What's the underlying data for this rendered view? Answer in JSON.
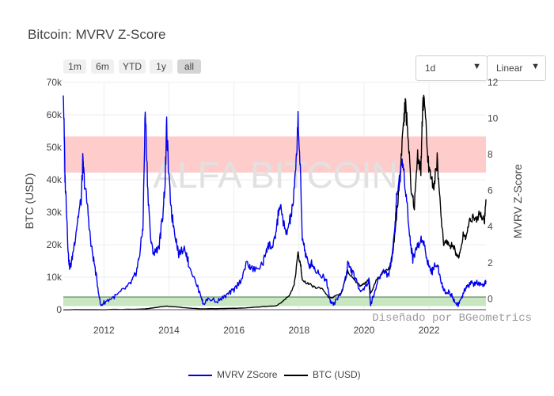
{
  "title": "Bitcoin: MVRV Z-Score",
  "controls": {
    "range_buttons": [
      "1m",
      "6m",
      "YTD",
      "1y",
      "all"
    ],
    "active_range": "all",
    "interval_select": "1d",
    "scale_select": "Linear"
  },
  "watermark": "ALFA BITCOIN",
  "credit": "Diseñado por BGeometrics",
  "colors": {
    "zscore": "#0000ee",
    "btc": "#000000",
    "red_band": "#ffcccc",
    "green_band": "#c8e6c0"
  },
  "chart_data": {
    "type": "line",
    "title": "Bitcoin: MVRV Z-Score",
    "xlabel": "",
    "x_ticks": [
      "2012",
      "2014",
      "2016",
      "2018",
      "2020",
      "2022"
    ],
    "x_range": [
      2010.75,
      2023.75
    ],
    "left_axis": {
      "label": "BTC (USD)",
      "range": [
        0,
        70000
      ],
      "ticks": [
        "0",
        "10k",
        "20k",
        "30k",
        "40k",
        "50k",
        "60k",
        "70k"
      ]
    },
    "right_axis": {
      "label": "MVRV Z-Score",
      "range": [
        -0.6,
        12
      ],
      "ticks": [
        "0",
        "2",
        "4",
        "6",
        "8",
        "10",
        "12"
      ]
    },
    "bands": [
      {
        "axis": "right",
        "from": 7.0,
        "to": 9.0,
        "color": "red"
      },
      {
        "axis": "right",
        "from": -0.4,
        "to": 0.1,
        "color": "green"
      }
    ],
    "series": [
      {
        "name": "MVRV ZScore",
        "axis": "right",
        "points": [
          [
            2010.75,
            11.6
          ],
          [
            2010.8,
            6.8
          ],
          [
            2010.85,
            5.0
          ],
          [
            2010.9,
            2.5
          ],
          [
            2010.95,
            1.7
          ],
          [
            2011.0,
            2.0
          ],
          [
            2011.1,
            3.2
          ],
          [
            2011.2,
            4.5
          ],
          [
            2011.3,
            5.5
          ],
          [
            2011.35,
            7.6
          ],
          [
            2011.4,
            6.5
          ],
          [
            2011.5,
            5.0
          ],
          [
            2011.6,
            3.0
          ],
          [
            2011.7,
            2.0
          ],
          [
            2011.8,
            0.8
          ],
          [
            2011.9,
            -0.4
          ],
          [
            2012.0,
            -0.2
          ],
          [
            2012.2,
            0.0
          ],
          [
            2012.4,
            0.2
          ],
          [
            2012.6,
            0.5
          ],
          [
            2012.8,
            0.8
          ],
          [
            2012.9,
            1.1
          ],
          [
            2013.0,
            1.5
          ],
          [
            2013.1,
            2.5
          ],
          [
            2013.2,
            4.0
          ],
          [
            2013.27,
            10.5
          ],
          [
            2013.35,
            6.0
          ],
          [
            2013.45,
            3.0
          ],
          [
            2013.55,
            2.5
          ],
          [
            2013.7,
            3.0
          ],
          [
            2013.8,
            4.5
          ],
          [
            2013.88,
            6.5
          ],
          [
            2013.93,
            9.6
          ],
          [
            2014.0,
            6.5
          ],
          [
            2014.1,
            4.5
          ],
          [
            2014.2,
            3.5
          ],
          [
            2014.3,
            2.5
          ],
          [
            2014.5,
            2.8
          ],
          [
            2014.6,
            2.0
          ],
          [
            2014.8,
            1.0
          ],
          [
            2015.0,
            0.1
          ],
          [
            2015.05,
            -0.3
          ],
          [
            2015.2,
            0.0
          ],
          [
            2015.5,
            -0.1
          ],
          [
            2015.7,
            0.1
          ],
          [
            2015.85,
            0.3
          ],
          [
            2016.0,
            0.5
          ],
          [
            2016.2,
            1.0
          ],
          [
            2016.4,
            2.0
          ],
          [
            2016.5,
            1.7
          ],
          [
            2016.7,
            1.6
          ],
          [
            2016.9,
            2.0
          ],
          [
            2017.0,
            2.8
          ],
          [
            2017.1,
            3.0
          ],
          [
            2017.2,
            2.8
          ],
          [
            2017.3,
            3.8
          ],
          [
            2017.4,
            5.2
          ],
          [
            2017.5,
            4.5
          ],
          [
            2017.6,
            3.5
          ],
          [
            2017.7,
            4.2
          ],
          [
            2017.8,
            5.0
          ],
          [
            2017.9,
            7.0
          ],
          [
            2017.97,
            10.1
          ],
          [
            2018.05,
            6.5
          ],
          [
            2018.1,
            3.5
          ],
          [
            2018.2,
            2.5
          ],
          [
            2018.3,
            1.8
          ],
          [
            2018.4,
            2.0
          ],
          [
            2018.5,
            1.6
          ],
          [
            2018.7,
            1.3
          ],
          [
            2018.85,
            1.0
          ],
          [
            2018.95,
            0.0
          ],
          [
            2019.0,
            -0.3
          ],
          [
            2019.1,
            -0.2
          ],
          [
            2019.3,
            0.3
          ],
          [
            2019.45,
            1.3
          ],
          [
            2019.5,
            2.0
          ],
          [
            2019.6,
            1.6
          ],
          [
            2019.7,
            1.3
          ],
          [
            2019.85,
            0.5
          ],
          [
            2020.0,
            0.6
          ],
          [
            2020.15,
            1.0
          ],
          [
            2020.2,
            -0.3
          ],
          [
            2020.3,
            0.2
          ],
          [
            2020.45,
            1.1
          ],
          [
            2020.6,
            1.6
          ],
          [
            2020.75,
            1.3
          ],
          [
            2020.85,
            2.2
          ],
          [
            2020.95,
            4.0
          ],
          [
            2021.0,
            5.6
          ],
          [
            2021.1,
            6.8
          ],
          [
            2021.2,
            7.5
          ],
          [
            2021.3,
            5.8
          ],
          [
            2021.4,
            3.5
          ],
          [
            2021.5,
            2.2
          ],
          [
            2021.6,
            2.8
          ],
          [
            2021.7,
            3.0
          ],
          [
            2021.8,
            3.5
          ],
          [
            2021.9,
            2.5
          ],
          [
            2022.0,
            1.8
          ],
          [
            2022.1,
            1.5
          ],
          [
            2022.2,
            2.0
          ],
          [
            2022.3,
            1.6
          ],
          [
            2022.4,
            0.8
          ],
          [
            2022.5,
            0.3
          ],
          [
            2022.6,
            0.4
          ],
          [
            2022.7,
            0.2
          ],
          [
            2022.8,
            -0.2
          ],
          [
            2022.9,
            -0.3
          ],
          [
            2023.0,
            0.0
          ],
          [
            2023.1,
            0.5
          ],
          [
            2023.2,
            0.7
          ],
          [
            2023.3,
            0.9
          ],
          [
            2023.4,
            0.8
          ],
          [
            2023.5,
            0.9
          ],
          [
            2023.6,
            0.7
          ],
          [
            2023.7,
            0.7
          ],
          [
            2023.75,
            1.0
          ]
        ]
      },
      {
        "name": "BTC (USD)",
        "axis": "left",
        "points": [
          [
            2010.75,
            0
          ],
          [
            2012.0,
            5
          ],
          [
            2013.27,
            200
          ],
          [
            2013.93,
            1100
          ],
          [
            2014.5,
            600
          ],
          [
            2015.0,
            250
          ],
          [
            2016.0,
            430
          ],
          [
            2016.5,
            650
          ],
          [
            2017.0,
            1000
          ],
          [
            2017.3,
            1200
          ],
          [
            2017.5,
            2500
          ],
          [
            2017.7,
            4500
          ],
          [
            2017.85,
            7500
          ],
          [
            2017.97,
            17000
          ],
          [
            2018.05,
            14000
          ],
          [
            2018.1,
            9000
          ],
          [
            2018.3,
            8000
          ],
          [
            2018.45,
            7000
          ],
          [
            2018.7,
            6500
          ],
          [
            2018.9,
            4000
          ],
          [
            2019.0,
            3600
          ],
          [
            2019.3,
            5000
          ],
          [
            2019.45,
            10000
          ],
          [
            2019.5,
            12000
          ],
          [
            2019.7,
            9000
          ],
          [
            2019.9,
            7200
          ],
          [
            2020.0,
            8000
          ],
          [
            2020.15,
            9500
          ],
          [
            2020.2,
            5000
          ],
          [
            2020.4,
            9500
          ],
          [
            2020.6,
            11500
          ],
          [
            2020.8,
            13000
          ],
          [
            2020.9,
            18500
          ],
          [
            2021.0,
            29000
          ],
          [
            2021.1,
            40000
          ],
          [
            2021.2,
            56000
          ],
          [
            2021.27,
            63000
          ],
          [
            2021.35,
            55000
          ],
          [
            2021.45,
            36000
          ],
          [
            2021.55,
            32000
          ],
          [
            2021.65,
            48000
          ],
          [
            2021.75,
            43000
          ],
          [
            2021.8,
            61000
          ],
          [
            2021.85,
            67000
          ],
          [
            2021.95,
            47000
          ],
          [
            2022.05,
            41000
          ],
          [
            2022.15,
            38000
          ],
          [
            2022.25,
            46000
          ],
          [
            2022.35,
            31000
          ],
          [
            2022.45,
            20000
          ],
          [
            2022.55,
            21000
          ],
          [
            2022.65,
            19500
          ],
          [
            2022.75,
            20000
          ],
          [
            2022.85,
            16500
          ],
          [
            2022.95,
            16800
          ],
          [
            2023.05,
            23000
          ],
          [
            2023.15,
            22500
          ],
          [
            2023.25,
            28000
          ],
          [
            2023.35,
            28500
          ],
          [
            2023.45,
            27000
          ],
          [
            2023.55,
            30000
          ],
          [
            2023.62,
            29000
          ],
          [
            2023.7,
            26500
          ],
          [
            2023.75,
            34000
          ]
        ]
      }
    ]
  }
}
